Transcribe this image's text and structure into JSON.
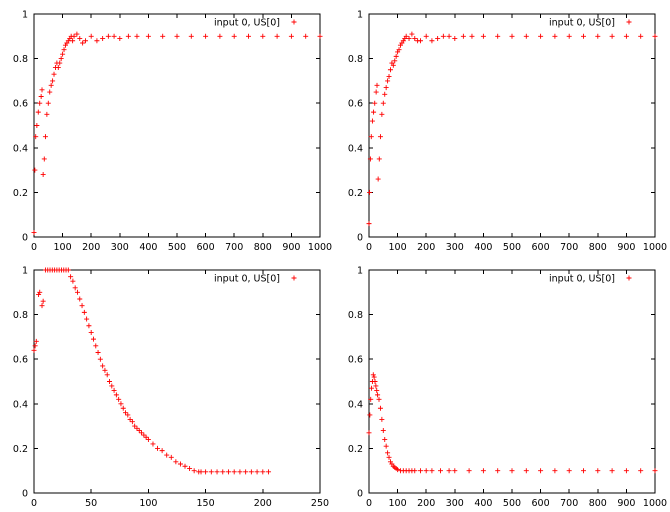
{
  "chart_data": [
    {
      "type": "scatter",
      "title": "",
      "xlabel": "",
      "ylabel": "",
      "xlim": [
        0,
        1000
      ],
      "ylim": [
        0,
        1
      ],
      "xticks": [
        0,
        100,
        200,
        300,
        400,
        500,
        600,
        700,
        800,
        900,
        1000
      ],
      "yticks": [
        0,
        0.2,
        0.4,
        0.6,
        0.8,
        1
      ],
      "legend": "top-right",
      "series": [
        {
          "name": "input 0, US[0]",
          "color": "#ff0000",
          "marker": "plus",
          "x": [
            0,
            3,
            6,
            10,
            15,
            20,
            25,
            28,
            32,
            36,
            40,
            45,
            50,
            55,
            60,
            65,
            70,
            75,
            80,
            85,
            90,
            95,
            100,
            105,
            110,
            115,
            120,
            125,
            130,
            135,
            140,
            150,
            160,
            170,
            180,
            200,
            220,
            240,
            260,
            280,
            300,
            330,
            360,
            400,
            450,
            500,
            550,
            600,
            650,
            700,
            750,
            800,
            850,
            900,
            950,
            1000
          ],
          "y": [
            0.02,
            0.3,
            0.45,
            0.5,
            0.56,
            0.6,
            0.63,
            0.66,
            0.28,
            0.35,
            0.45,
            0.55,
            0.6,
            0.65,
            0.68,
            0.7,
            0.73,
            0.76,
            0.78,
            0.76,
            0.78,
            0.8,
            0.82,
            0.84,
            0.86,
            0.87,
            0.88,
            0.89,
            0.9,
            0.88,
            0.9,
            0.91,
            0.89,
            0.87,
            0.88,
            0.9,
            0.88,
            0.89,
            0.9,
            0.9,
            0.89,
            0.9,
            0.9,
            0.9,
            0.9,
            0.9,
            0.9,
            0.9,
            0.9,
            0.9,
            0.9,
            0.9,
            0.9,
            0.9,
            0.9,
            0.9
          ]
        }
      ]
    },
    {
      "type": "scatter",
      "title": "",
      "xlabel": "",
      "ylabel": "",
      "xlim": [
        0,
        1000
      ],
      "ylim": [
        0,
        1
      ],
      "xticks": [
        0,
        100,
        200,
        300,
        400,
        500,
        600,
        700,
        800,
        900,
        1000
      ],
      "yticks": [
        0,
        0.2,
        0.4,
        0.6,
        0.8,
        1
      ],
      "legend": "top-right",
      "series": [
        {
          "name": "input 0, US[0]",
          "color": "#ff0000",
          "marker": "plus",
          "x": [
            0,
            2,
            5,
            8,
            12,
            16,
            20,
            25,
            28,
            32,
            36,
            40,
            45,
            50,
            55,
            60,
            65,
            70,
            75,
            80,
            85,
            90,
            95,
            100,
            105,
            110,
            115,
            120,
            125,
            130,
            140,
            150,
            160,
            170,
            180,
            200,
            220,
            240,
            260,
            280,
            300,
            330,
            360,
            400,
            450,
            500,
            550,
            600,
            650,
            700,
            750,
            800,
            850,
            900,
            950,
            1000
          ],
          "y": [
            0.06,
            0.2,
            0.35,
            0.45,
            0.52,
            0.56,
            0.6,
            0.65,
            0.68,
            0.26,
            0.35,
            0.45,
            0.55,
            0.6,
            0.64,
            0.67,
            0.7,
            0.72,
            0.75,
            0.78,
            0.77,
            0.79,
            0.81,
            0.83,
            0.84,
            0.86,
            0.87,
            0.88,
            0.89,
            0.9,
            0.89,
            0.91,
            0.89,
            0.88,
            0.88,
            0.9,
            0.88,
            0.89,
            0.9,
            0.9,
            0.89,
            0.9,
            0.9,
            0.9,
            0.9,
            0.9,
            0.9,
            0.9,
            0.9,
            0.9,
            0.9,
            0.9,
            0.9,
            0.9,
            0.9,
            0.9
          ]
        }
      ]
    },
    {
      "type": "scatter",
      "title": "",
      "xlabel": "",
      "ylabel": "",
      "xlim": [
        0,
        250
      ],
      "ylim": [
        0,
        1
      ],
      "xticks": [
        0,
        50,
        100,
        150,
        200,
        250
      ],
      "yticks": [
        0,
        0.2,
        0.4,
        0.6,
        0.8,
        1
      ],
      "legend": "top-right",
      "series": [
        {
          "name": "input 0, US[0]",
          "color": "#ff0000",
          "marker": "plus",
          "x": [
            0,
            1,
            2,
            4,
            5,
            7,
            8,
            10,
            12,
            14,
            16,
            18,
            20,
            22,
            24,
            26,
            28,
            30,
            32,
            34,
            36,
            38,
            40,
            42,
            44,
            46,
            48,
            50,
            52,
            54,
            56,
            58,
            60,
            62,
            64,
            66,
            68,
            70,
            72,
            74,
            76,
            78,
            80,
            82,
            84,
            86,
            88,
            90,
            92,
            94,
            96,
            98,
            100,
            104,
            108,
            112,
            116,
            120,
            124,
            128,
            132,
            136,
            140,
            144,
            146,
            150,
            155,
            160,
            165,
            170,
            175,
            180,
            185,
            190,
            195,
            200,
            205
          ],
          "y": [
            0.64,
            0.66,
            0.68,
            0.89,
            0.9,
            0.84,
            0.86,
            1,
            1,
            1,
            1,
            1,
            1,
            1,
            1,
            1,
            1,
            1,
            0.97,
            0.95,
            0.92,
            0.9,
            0.87,
            0.84,
            0.81,
            0.78,
            0.75,
            0.72,
            0.69,
            0.66,
            0.63,
            0.6,
            0.57,
            0.55,
            0.53,
            0.5,
            0.48,
            0.46,
            0.44,
            0.42,
            0.4,
            0.38,
            0.36,
            0.35,
            0.33,
            0.32,
            0.3,
            0.29,
            0.28,
            0.27,
            0.26,
            0.25,
            0.24,
            0.22,
            0.2,
            0.19,
            0.17,
            0.16,
            0.14,
            0.13,
            0.12,
            0.11,
            0.1,
            0.095,
            0.095,
            0.095,
            0.095,
            0.095,
            0.095,
            0.095,
            0.095,
            0.095,
            0.095,
            0.095,
            0.095,
            0.095,
            0.095
          ]
        }
      ]
    },
    {
      "type": "scatter",
      "title": "",
      "xlabel": "",
      "ylabel": "",
      "xlim": [
        0,
        1000
      ],
      "ylim": [
        0,
        1
      ],
      "xticks": [
        0,
        100,
        200,
        300,
        400,
        500,
        600,
        700,
        800,
        900,
        1000
      ],
      "yticks": [
        0,
        0.2,
        0.4,
        0.6,
        0.8,
        1
      ],
      "legend": "top-right",
      "series": [
        {
          "name": "input 0, US[0]",
          "color": "#ff0000",
          "marker": "plus",
          "x": [
            0,
            3,
            6,
            9,
            12,
            15,
            18,
            21,
            24,
            27,
            30,
            35,
            40,
            45,
            50,
            55,
            60,
            65,
            70,
            75,
            80,
            85,
            90,
            95,
            100,
            110,
            120,
            130,
            140,
            150,
            160,
            180,
            200,
            220,
            250,
            280,
            300,
            350,
            400,
            450,
            500,
            550,
            600,
            650,
            700,
            750,
            800,
            850,
            900,
            950,
            1000
          ],
          "y": [
            0.27,
            0.35,
            0.42,
            0.47,
            0.5,
            0.53,
            0.52,
            0.5,
            0.48,
            0.46,
            0.44,
            0.42,
            0.38,
            0.33,
            0.28,
            0.24,
            0.21,
            0.18,
            0.16,
            0.14,
            0.13,
            0.12,
            0.115,
            0.11,
            0.105,
            0.1,
            0.1,
            0.1,
            0.1,
            0.1,
            0.1,
            0.1,
            0.1,
            0.1,
            0.1,
            0.1,
            0.1,
            0.1,
            0.1,
            0.1,
            0.1,
            0.1,
            0.1,
            0.1,
            0.1,
            0.1,
            0.1,
            0.1,
            0.1,
            0.1,
            0.1
          ]
        }
      ]
    }
  ]
}
